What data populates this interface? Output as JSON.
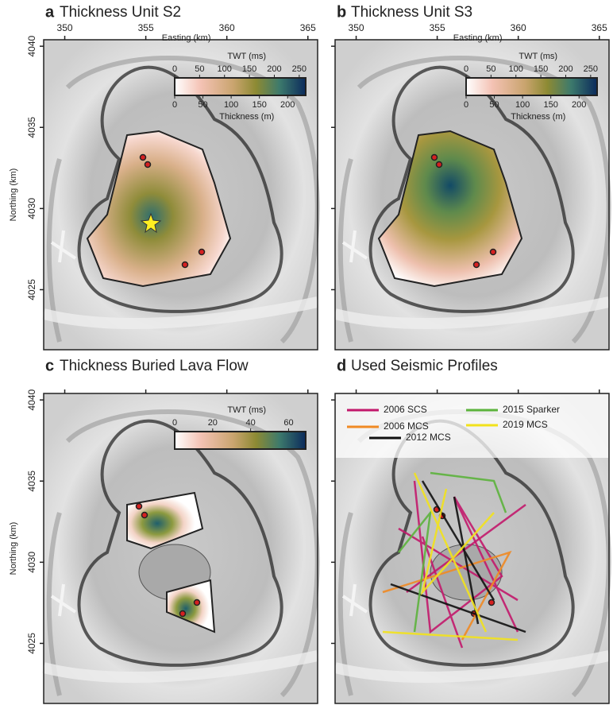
{
  "xlim": [
    348.7,
    365.6
  ],
  "ylim": [
    4021.3,
    4040.4
  ],
  "easting_label": "Easting (km)",
  "northing_label": "Northing (km)",
  "easting_ticks": [
    350,
    355,
    360,
    365
  ],
  "northing_ticks": [
    4040,
    4035,
    4030,
    4025
  ],
  "panels": [
    {
      "letter": "a",
      "title": "Thickness Unit S2",
      "show_easting": true,
      "show_northing": true,
      "colorbar": {
        "top_label": "TWT (ms)",
        "top_ticks": [
          0,
          50,
          100,
          150,
          200,
          250
        ],
        "top_lim": [
          0,
          263
        ],
        "bottom_label": "Thickness (m)",
        "bottom_ticks": [
          0,
          50,
          100,
          150,
          200
        ],
        "bottom_lim": [
          0,
          232
        ]
      }
    },
    {
      "letter": "b",
      "title": "Thickness Unit S3",
      "show_easting": true,
      "show_northing": false,
      "colorbar": {
        "top_label": "TWT (ms)",
        "top_ticks": [
          0,
          50,
          100,
          150,
          200,
          250
        ],
        "top_lim": [
          0,
          263
        ],
        "bottom_label": "Thickness (m)",
        "bottom_ticks": [
          0,
          50,
          100,
          150,
          200
        ],
        "bottom_lim": [
          0,
          232
        ]
      }
    },
    {
      "letter": "c",
      "title": "Thickness Buried Lava Flow",
      "show_easting": false,
      "show_northing": true,
      "colorbar": {
        "top_label": "TWT (ms)",
        "top_ticks": [
          0,
          20,
          40,
          60
        ],
        "top_lim": [
          0,
          69
        ]
      }
    },
    {
      "letter": "d",
      "title": "Used Seismic Profiles",
      "show_easting": false,
      "show_northing": false,
      "legend": [
        {
          "name": "2006 SCS",
          "color": "#c2186b"
        },
        {
          "name": "2006 MCS",
          "color": "#f08a24"
        },
        {
          "name": "2012 MCS",
          "color": "#111111"
        },
        {
          "name": "2015 Sparker",
          "color": "#5cb33c"
        },
        {
          "name": "2019 MCS",
          "color": "#f2e21c"
        }
      ]
    }
  ]
}
